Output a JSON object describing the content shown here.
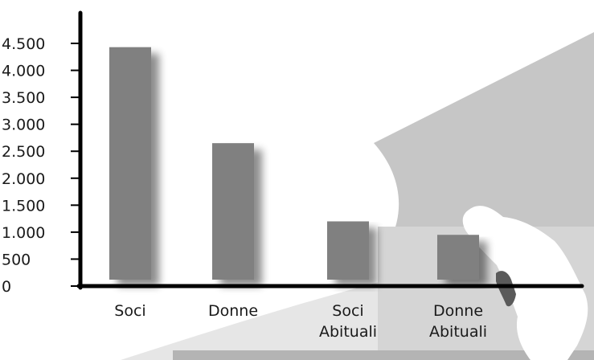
{
  "chart_data": {
    "type": "bar",
    "categories": [
      [
        "Soci"
      ],
      [
        "Donne"
      ],
      [
        "Soci",
        "Abituali"
      ],
      [
        "Donne",
        "Abituali"
      ]
    ],
    "values": [
      4430,
      2650,
      1200,
      950
    ],
    "ylim": [
      0,
      4500
    ],
    "yticks": [
      0,
      500,
      1000,
      1500,
      2000,
      2500,
      3000,
      3500,
      4000,
      4500
    ],
    "ytick_labels": [
      "0",
      "500",
      "1.000",
      "1.500",
      "2.000",
      "2.500",
      "3.000",
      "3.500",
      "4.000",
      "4.500"
    ],
    "title": "",
    "xlabel": "",
    "ylabel": "",
    "grid": false,
    "legend": "none"
  },
  "colors": {
    "bar": "#808080",
    "bar_shadow": "#bdbdbd",
    "axis": "#000000",
    "background_light": "#e6e6e6",
    "background_mid": "#c6c6c6",
    "background_dark": "#b4b4b4",
    "region_shape": "#ffffff",
    "region_highlight": "#5a5a5a"
  }
}
